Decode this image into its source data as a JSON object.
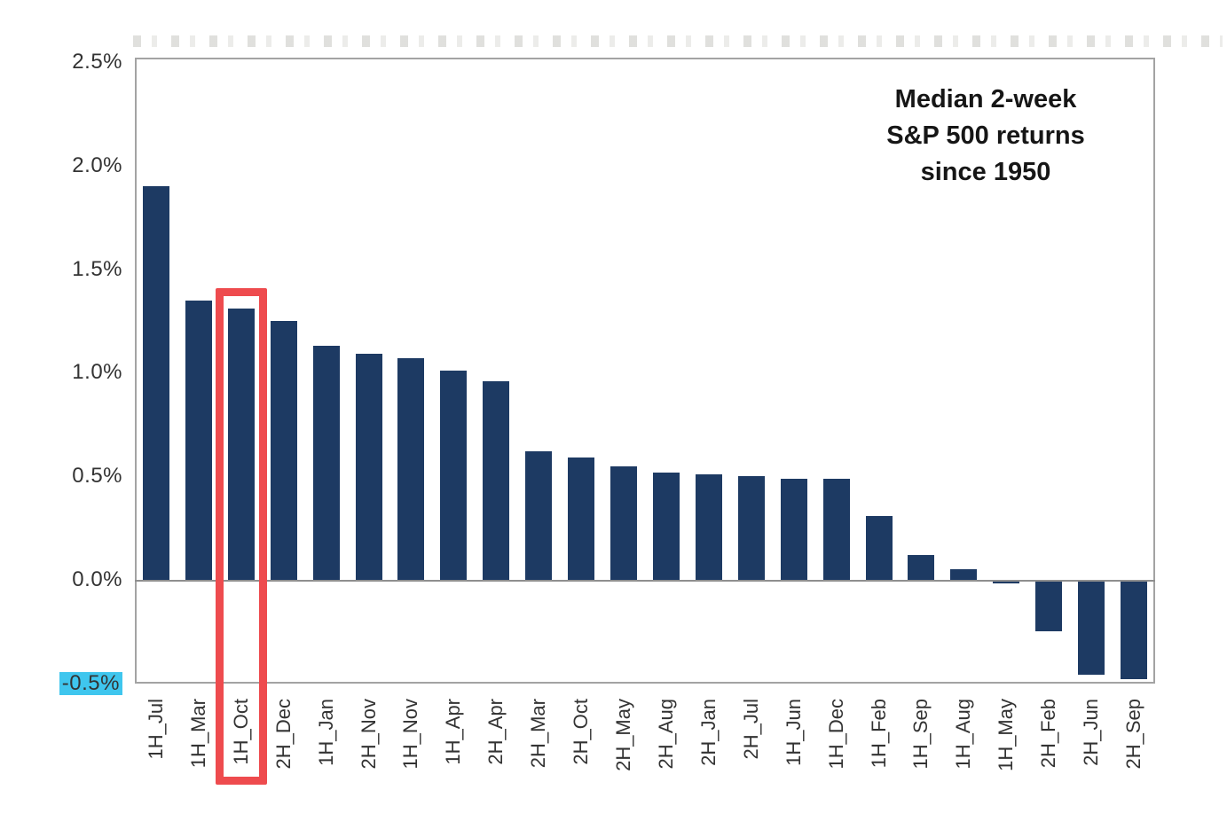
{
  "chart_data": {
    "type": "bar",
    "title_lines": [
      "Median 2-week",
      "S&P 500 returns",
      "since 1950"
    ],
    "categories": [
      "1H_Jul",
      "1H_Mar",
      "1H_Oct",
      "2H_Dec",
      "1H_Jan",
      "2H_Nov",
      "1H_Nov",
      "1H_Apr",
      "2H_Apr",
      "2H_Mar",
      "2H_Oct",
      "2H_May",
      "2H_Aug",
      "2H_Jan",
      "2H_Jul",
      "1H_Jun",
      "1H_Dec",
      "1H_Feb",
      "1H_Sep",
      "1H_Aug",
      "1H_May",
      "2H_Feb",
      "2H_Jun",
      "2H_Sep"
    ],
    "values": [
      1.9,
      1.35,
      1.31,
      1.25,
      1.13,
      1.09,
      1.07,
      1.01,
      0.96,
      0.62,
      0.59,
      0.55,
      0.52,
      0.51,
      0.5,
      0.49,
      0.49,
      0.31,
      0.12,
      0.05,
      -0.01,
      -0.24,
      -0.45,
      -0.47
    ],
    "xlabel": "",
    "ylabel": "",
    "ylim": [
      -0.5,
      2.52
    ],
    "grid": false,
    "legend_position": "none",
    "y_ticks": [
      {
        "label": "2.5%",
        "value": 2.5,
        "highlighted": false
      },
      {
        "label": "2.0%",
        "value": 2.0,
        "highlighted": false
      },
      {
        "label": "1.5%",
        "value": 1.5,
        "highlighted": false
      },
      {
        "label": "1.0%",
        "value": 1.0,
        "highlighted": false
      },
      {
        "label": "0.5%",
        "value": 0.5,
        "highlighted": false
      },
      {
        "label": "0.0%",
        "value": 0.0,
        "highlighted": false
      },
      {
        "label": "-0.5%",
        "value": -0.5,
        "highlighted": true
      }
    ],
    "annotations": {
      "highlight_box_category": "1H_Oct",
      "highlight_box_color": "#ee4b4e",
      "tick_highlight_color": "#3fc6ee"
    },
    "colors": {
      "bar": "#1d3a63",
      "axis_box": "#a3a3a3",
      "zero_line": "#8f8f8f",
      "tick_text": "#333333",
      "title_text": "#161616"
    }
  }
}
